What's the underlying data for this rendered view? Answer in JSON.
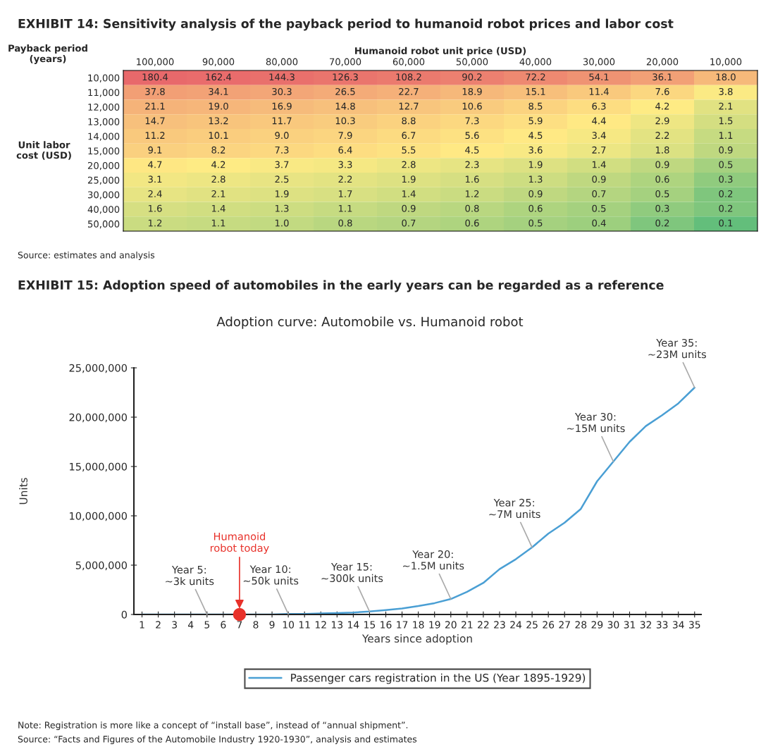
{
  "chart_data": [
    {
      "type": "heatmap",
      "title": "EXHIBIT 14: Sensitivity analysis of the payback period to humanoid robot prices and labor cost",
      "xlabel": "Humanoid robot unit price (USD)",
      "ylabel": "Unit labor\ncost (USD)",
      "legend_title": "Payback period (years)",
      "categories": [
        "100,000",
        "90,000",
        "80,000",
        "70,000",
        "60,000",
        "50,000",
        "40,000",
        "30,000",
        "20,000",
        "10,000"
      ],
      "y_categories": [
        "10,000",
        "11,000",
        "12,000",
        "13,000",
        "14,000",
        "15,000",
        "20,000",
        "25,000",
        "30,000",
        "40,000",
        "50,000"
      ],
      "cells": [
        [
          180.4,
          162.4,
          144.3,
          126.3,
          108.2,
          90.2,
          72.2,
          54.1,
          36.1,
          18.0
        ],
        [
          37.8,
          34.1,
          30.3,
          26.5,
          22.7,
          18.9,
          15.1,
          11.4,
          7.6,
          3.8
        ],
        [
          21.1,
          19.0,
          16.9,
          14.8,
          12.7,
          10.6,
          8.5,
          6.3,
          4.2,
          2.1
        ],
        [
          14.7,
          13.2,
          11.7,
          10.3,
          8.8,
          7.3,
          5.9,
          4.4,
          2.9,
          1.5
        ],
        [
          11.2,
          10.1,
          9.0,
          7.9,
          6.7,
          5.6,
          4.5,
          3.4,
          2.2,
          1.1
        ],
        [
          9.1,
          8.2,
          7.3,
          6.4,
          5.5,
          4.5,
          3.6,
          2.7,
          1.8,
          0.9
        ],
        [
          4.7,
          4.2,
          3.7,
          3.3,
          2.8,
          2.3,
          1.9,
          1.4,
          0.9,
          0.5
        ],
        [
          3.1,
          2.8,
          2.5,
          2.2,
          1.9,
          1.6,
          1.3,
          0.9,
          0.6,
          0.3
        ],
        [
          2.4,
          2.1,
          1.9,
          1.7,
          1.4,
          1.2,
          0.9,
          0.7,
          0.5,
          0.2
        ],
        [
          1.6,
          1.4,
          1.3,
          1.1,
          0.9,
          0.8,
          0.6,
          0.5,
          0.3,
          0.2
        ],
        [
          1.2,
          1.1,
          1.0,
          0.8,
          0.7,
          0.6,
          0.5,
          0.4,
          0.2,
          0.1
        ]
      ],
      "data_labels": true,
      "cell_labels": [
        [
          "180.4",
          "162.4",
          "144.3",
          "126.3",
          "108.2",
          "90.2",
          "72.2",
          "54.1",
          "36.1",
          "18.0"
        ],
        [
          "37.8",
          "34.1",
          "30.3",
          "26.5",
          "22.7",
          "18.9",
          "15.1",
          "11.4",
          "7.6",
          "3.8"
        ],
        [
          "21.1",
          "19.0",
          "16.9",
          "14.8",
          "12.7",
          "10.6",
          "8.5",
          "6.3",
          "4.2",
          "2.1"
        ],
        [
          "14.7",
          "13.2",
          "11.7",
          "10.3",
          "8.8",
          "7.3",
          "5.9",
          "4.4",
          "2.9",
          "1.5"
        ],
        [
          "11.2",
          "10.1",
          "9.0",
          "7.9",
          "6.7",
          "5.6",
          "4.5",
          "3.4",
          "2.2",
          "1.1"
        ],
        [
          "9.1",
          "8.2",
          "7.3",
          "6.4",
          "5.5",
          "4.5",
          "3.6",
          "2.7",
          "1.8",
          "0.9"
        ],
        [
          "4.7",
          "4.2",
          "3.7",
          "3.3",
          "2.8",
          "2.3",
          "1.9",
          "1.4",
          "0.9",
          "0.5"
        ],
        [
          "3.1",
          "2.8",
          "2.5",
          "2.2",
          "1.9",
          "1.6",
          "1.3",
          "0.9",
          "0.6",
          "0.3"
        ],
        [
          "2.4",
          "2.1",
          "1.9",
          "1.7",
          "1.4",
          "1.2",
          "0.9",
          "0.7",
          "0.5",
          "0.2"
        ],
        [
          "1.6",
          "1.4",
          "1.3",
          "1.1",
          "0.9",
          "0.8",
          "0.6",
          "0.5",
          "0.3",
          "0.2"
        ],
        [
          "1.2",
          "1.1",
          "1.0",
          "0.8",
          "0.7",
          "0.6",
          "0.5",
          "0.4",
          "0.2",
          "0.1"
        ]
      ],
      "annotations": [
        "Source: estimates and analysis"
      ]
    },
    {
      "type": "line",
      "title": "EXHIBIT 15: Adoption speed of automobiles in the early years can be regarded as a reference",
      "subtitle": "Adoption curve: Automobile vs. Humanoid robot",
      "xlabel": "Years since adoption",
      "ylabel": "Units",
      "categories": [
        "1",
        "2",
        "3",
        "4",
        "5",
        "6",
        "7",
        "8",
        "9",
        "10",
        "11",
        "12",
        "13",
        "14",
        "15",
        "16",
        "17",
        "18",
        "19",
        "20",
        "21",
        "22",
        "23",
        "24",
        "25",
        "26",
        "27",
        "28",
        "29",
        "30",
        "31",
        "32",
        "33",
        "34",
        "35"
      ],
      "series": [
        {
          "name": "Passenger cars registration in the US (Year 1895-1929)",
          "color": "#4a9fd4",
          "values": [
            0,
            0,
            0,
            0,
            3000,
            0,
            0,
            0,
            0,
            50000,
            50000,
            100000,
            150000,
            200000,
            300000,
            450000,
            600000,
            850000,
            1150000,
            1570000,
            2300000,
            3200000,
            4600000,
            5600000,
            6800000,
            8200000,
            9300000,
            10700000,
            13500000,
            15500000,
            17500000,
            19100000,
            20200000,
            21400000,
            23000000
          ]
        },
        {
          "type": "scatter",
          "name": "Humanoid\nrobot today",
          "color": "#e8312a",
          "x": [
            "7"
          ],
          "values": [
            0
          ],
          "marker": "circle"
        }
      ],
      "ylim": [
        0,
        25000000
      ],
      "yticks": [
        0,
        {
          "value": 5000000,
          "label": "5,000,000"
        },
        {
          "value": 10000000,
          "label": "10,000,000"
        },
        {
          "value": 15000000,
          "label": "15,000,000"
        },
        {
          "value": 20000000,
          "label": "20,000,000"
        },
        {
          "value": 25000000,
          "label": "25,000,000"
        }
      ],
      "grid": false,
      "legend": "bottom",
      "marker": "none",
      "line_style": "solid",
      "annotations": [
        {
          "text": "Year 5:\n~3k units",
          "x": "5",
          "y": 3000
        },
        {
          "text": "Year 10:\n~50k units",
          "x": "10",
          "y": 50000
        },
        {
          "text": "Year 15:\n~300k units",
          "x": "15",
          "y": 300000
        },
        {
          "text": "Year 20:\n~1.5M units",
          "x": "20",
          "y": 1570000
        },
        {
          "text": "Year 25:\n~7M units",
          "x": "25",
          "y": 6800000
        },
        {
          "text": "Year 30:\n~15M units",
          "x": "30",
          "y": 15500000
        },
        {
          "text": "Year 35:\n~23M units",
          "x": "35",
          "y": 23000000
        },
        "Note: Registration is more like a concept of “install base”, instead of “annual shipment”.",
        "Source: “Facts and Figures of the Automobile Industry 1920-1930”, analysis and estimates"
      ]
    }
  ]
}
